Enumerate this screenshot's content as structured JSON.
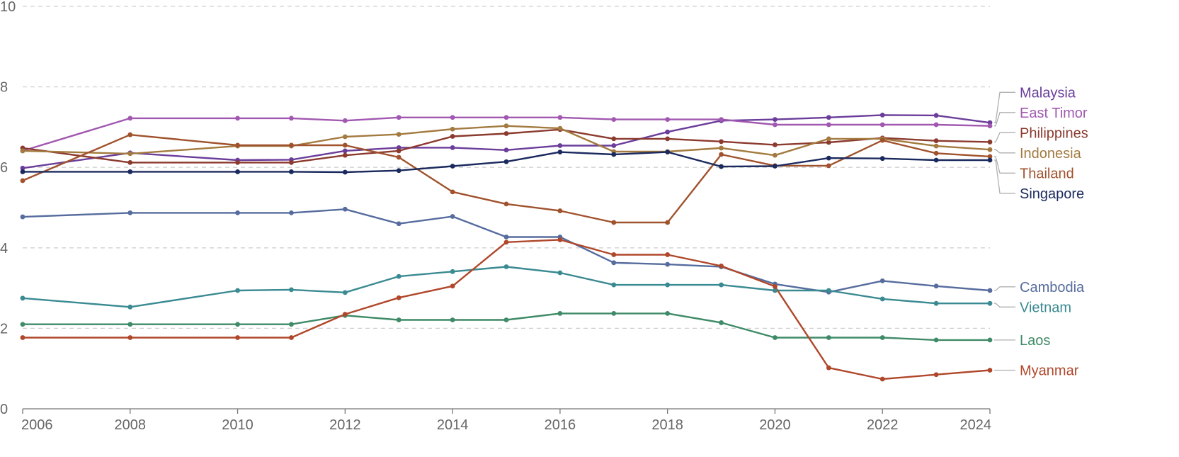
{
  "chart_data": {
    "type": "line",
    "x": [
      2006,
      2008,
      2010,
      2011,
      2012,
      2013,
      2014,
      2015,
      2016,
      2017,
      2018,
      2019,
      2020,
      2021,
      2022,
      2023,
      2024
    ],
    "xlim": [
      2006,
      2024
    ],
    "ylim": [
      0,
      10
    ],
    "xticks": [
      "2006",
      "2008",
      "2010",
      "2012",
      "2014",
      "2016",
      "2018",
      "2020",
      "2022",
      "2024"
    ],
    "yticks": [
      "0",
      "2",
      "4",
      "6",
      "8",
      "10"
    ],
    "grid": "horizontal dashed",
    "legend": "labels at right end of lines",
    "series": [
      {
        "name": "Malaysia",
        "color": "#6a3d9a",
        "values": [
          5.98,
          6.36,
          6.18,
          6.19,
          6.41,
          6.49,
          6.49,
          6.43,
          6.54,
          6.54,
          6.88,
          7.16,
          7.19,
          7.24,
          7.3,
          7.29,
          7.11
        ]
      },
      {
        "name": "East Timor",
        "color": "#a158b0",
        "values": [
          6.41,
          7.22,
          7.22,
          7.22,
          7.16,
          7.24,
          7.24,
          7.24,
          7.24,
          7.19,
          7.19,
          7.19,
          7.06,
          7.06,
          7.06,
          7.06,
          7.03
        ]
      },
      {
        "name": "Philippines",
        "color": "#8b3a2e",
        "values": [
          6.48,
          6.12,
          6.12,
          6.12,
          6.3,
          6.41,
          6.77,
          6.84,
          6.94,
          6.71,
          6.71,
          6.64,
          6.56,
          6.62,
          6.73,
          6.66,
          6.63
        ]
      },
      {
        "name": "Indonesia",
        "color": "#a37a3f",
        "values": [
          6.41,
          6.34,
          6.53,
          6.53,
          6.76,
          6.82,
          6.95,
          7.03,
          6.97,
          6.39,
          6.39,
          6.48,
          6.3,
          6.71,
          6.71,
          6.53,
          6.44
        ]
      },
      {
        "name": "Thailand",
        "color": "#a0522d",
        "values": [
          5.67,
          6.81,
          6.55,
          6.55,
          6.55,
          6.25,
          5.39,
          5.09,
          4.92,
          4.63,
          4.63,
          6.32,
          6.04,
          6.04,
          6.67,
          6.35,
          6.27
        ]
      },
      {
        "name": "Singapore",
        "color": "#1b2a5e",
        "values": [
          5.89,
          5.89,
          5.89,
          5.89,
          5.88,
          5.92,
          6.03,
          6.14,
          6.38,
          6.32,
          6.38,
          6.02,
          6.03,
          6.23,
          6.22,
          6.18,
          6.18
        ]
      },
      {
        "name": "Cambodia",
        "color": "#566c9e",
        "values": [
          4.77,
          4.87,
          4.87,
          4.87,
          4.96,
          4.6,
          4.78,
          4.27,
          4.27,
          3.63,
          3.59,
          3.53,
          3.1,
          2.9,
          3.18,
          3.05,
          2.94
        ]
      },
      {
        "name": "Vietnam",
        "color": "#3a8a92",
        "values": [
          2.75,
          2.53,
          2.94,
          2.96,
          2.89,
          3.29,
          3.41,
          3.53,
          3.38,
          3.08,
          3.08,
          3.08,
          2.94,
          2.94,
          2.73,
          2.62,
          2.62
        ]
      },
      {
        "name": "Laos",
        "color": "#3f8a67",
        "values": [
          2.1,
          2.1,
          2.1,
          2.1,
          2.32,
          2.21,
          2.21,
          2.21,
          2.37,
          2.37,
          2.37,
          2.14,
          1.77,
          1.77,
          1.77,
          1.71,
          1.71
        ]
      },
      {
        "name": "Myanmar",
        "color": "#b0472a",
        "values": [
          1.77,
          1.77,
          1.77,
          1.77,
          2.35,
          2.76,
          3.05,
          4.14,
          4.2,
          3.83,
          3.83,
          3.55,
          3.04,
          1.02,
          0.74,
          0.85,
          0.96
        ]
      }
    ]
  }
}
